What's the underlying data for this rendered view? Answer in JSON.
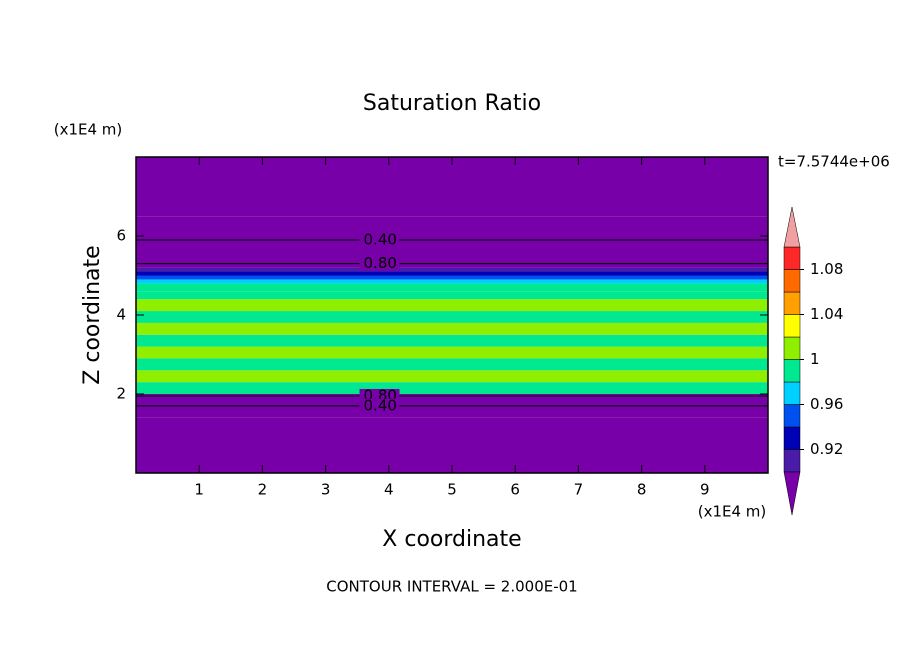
{
  "chart_data": {
    "type": "contour",
    "title": "Saturation Ratio",
    "xlabel": "X coordinate",
    "ylabel": "Z coordinate",
    "x_unit": "(x1E4 m)",
    "y_unit": "(x1E4 m)",
    "time_label": "t=7.5744e+06",
    "footer": "CONTOUR INTERVAL = 2.000E-01",
    "xlim": [
      0,
      10
    ],
    "ylim": [
      0,
      8
    ],
    "xticks": [
      1,
      2,
      3,
      4,
      5,
      6,
      7,
      8,
      9
    ],
    "yticks": [
      2,
      4,
      6
    ],
    "profile": {
      "z": [
        0,
        1.4,
        1.7,
        1.95,
        2.0,
        2.3,
        2.6,
        2.9,
        3.2,
        3.5,
        3.8,
        4.1,
        4.4,
        4.6,
        4.8,
        4.9,
        5.0,
        5.1,
        5.2,
        5.3,
        5.9,
        6.5,
        8
      ],
      "values": [
        0.3,
        0.4,
        0.6,
        0.85,
        0.99,
        1.01,
        0.99,
        1.01,
        0.99,
        1.01,
        0.99,
        1.01,
        0.99,
        0.99,
        0.97,
        0.95,
        0.93,
        0.91,
        0.8,
        0.5,
        0.4,
        0.35
      ]
    },
    "contours": [
      {
        "value": 0.4,
        "label": "0.40",
        "z": 5.9
      },
      {
        "value": 0.8,
        "label": "0.80",
        "z": 5.3
      },
      {
        "value": 0.8,
        "label": "0.80",
        "z": 1.95
      },
      {
        "value": 0.4,
        "label": "0.40",
        "z": 1.7
      }
    ],
    "colorbar": {
      "levels": [
        0.9,
        0.92,
        0.94,
        0.96,
        0.98,
        1.0,
        1.02,
        1.04,
        1.06,
        1.08,
        1.1
      ],
      "colors": [
        "#4a1aa8",
        "#0000b4",
        "#0050f0",
        "#00d0ff",
        "#00e890",
        "#90ee00",
        "#ffff00",
        "#ffa000",
        "#ff6a00",
        "#ff2828"
      ],
      "under_color": "#7800a8",
      "over_color": "#f0a0a0",
      "ticks": [
        0.92,
        0.96,
        1,
        1.04,
        1.08
      ]
    }
  }
}
